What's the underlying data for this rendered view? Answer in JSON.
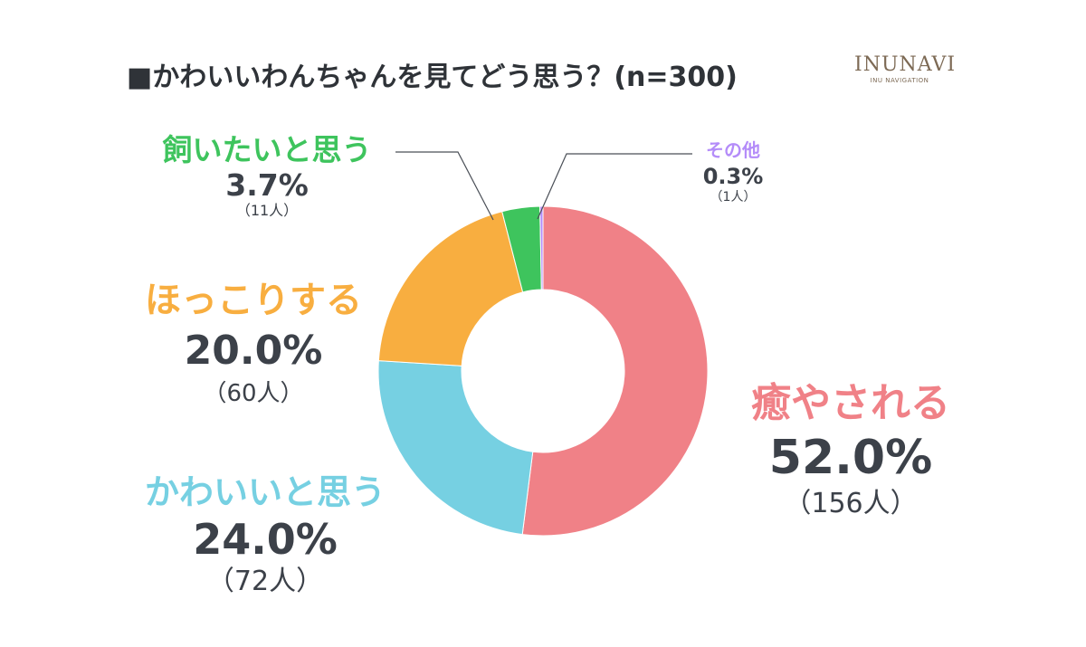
{
  "title": "■かわいいわんちゃんを見てどう思う？(n=300)",
  "logo": {
    "main": "INUNAVI",
    "sub": "INU NAVIGATION"
  },
  "chart_data": {
    "type": "pie",
    "donut": true,
    "start": "top",
    "direction": "clockwise",
    "slices": [
      {
        "key": "iyasareru",
        "label": "癒やされる",
        "value": 52.0,
        "percent": "52.0%",
        "count": "（156人）",
        "color": "#f08187"
      },
      {
        "key": "kawaii",
        "label": "かわいいと思う",
        "value": 24.0,
        "percent": "24.0%",
        "count": "（72人）",
        "color": "#76d0e2"
      },
      {
        "key": "hokkori",
        "label": "ほっこりする",
        "value": 20.0,
        "percent": "20.0%",
        "count": "（60人）",
        "color": "#f8ae40"
      },
      {
        "key": "kaitai",
        "label": "飼いたいと思う",
        "value": 3.7,
        "percent": "3.7%",
        "count": "（11人）",
        "color": "#3ec45d"
      },
      {
        "key": "sonota",
        "label": "その他",
        "value": 0.3,
        "percent": "0.3%",
        "count": "（1人）",
        "color": "#b48cf9"
      }
    ]
  }
}
